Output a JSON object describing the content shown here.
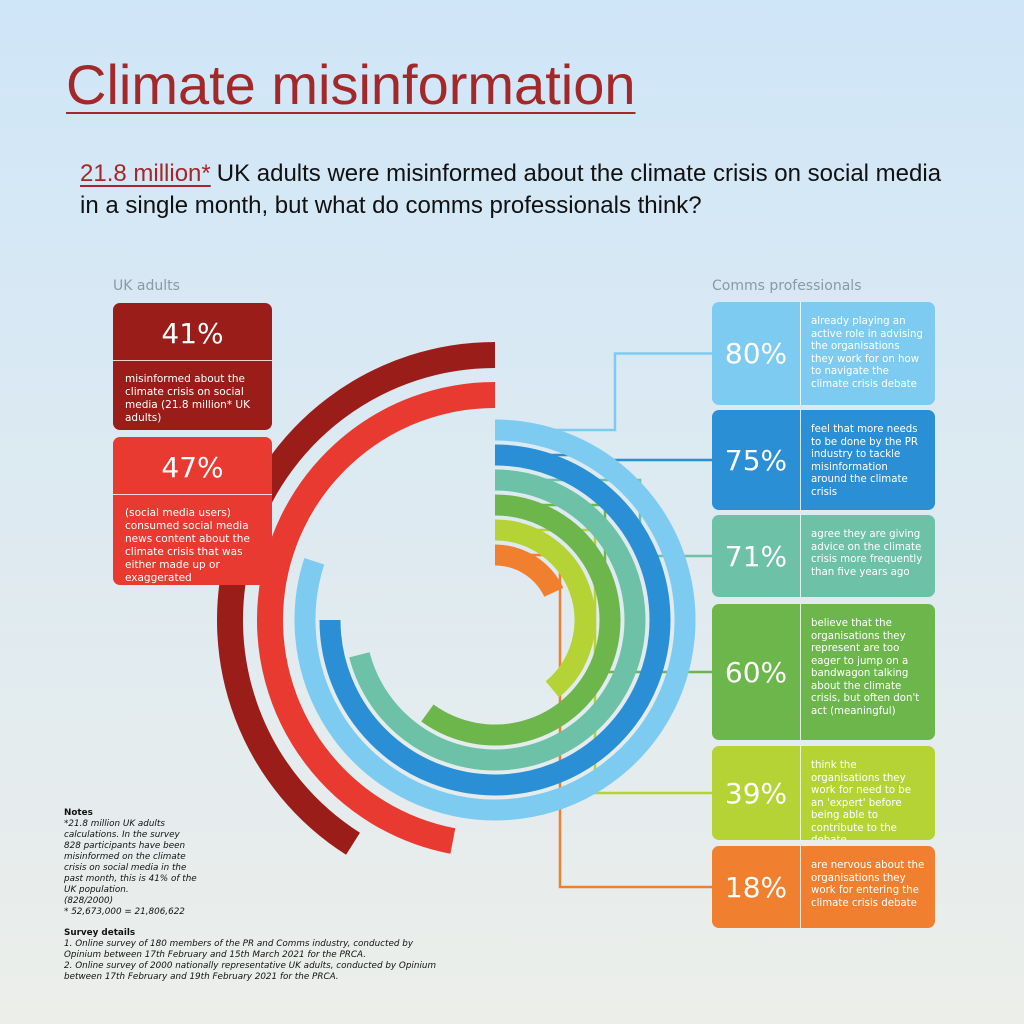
{
  "chart_data": {
    "type": "radial_bar",
    "title": "Climate misinformation",
    "subtitle_lead": "21.8 million*",
    "subtitle": "UK adults were misinformed about the climate crisis on social media in a single month, but what do comms professionals think?",
    "ylim": [
      0,
      100
    ],
    "series": [
      {
        "name": "UK adults",
        "direction": "counterclockwise",
        "values": [
          41,
          47
        ],
        "value_labels": [
          "41%",
          "47%"
        ],
        "colors": [
          "#9b1d1a",
          "#e83a30"
        ],
        "descriptions": [
          "misinformed about the climate crisis on social media (21.8 million* UK adults)",
          "(social media users) consumed social media news content about the climate crisis that was either made up or exaggerated"
        ]
      },
      {
        "name": "Comms professionals",
        "direction": "clockwise",
        "values": [
          80,
          75,
          71,
          60,
          39,
          18
        ],
        "value_labels": [
          "80%",
          "75%",
          "71%",
          "60%",
          "39%",
          "18%"
        ],
        "colors": [
          "#7ecbf1",
          "#2b8fd5",
          "#6cc1a6",
          "#6db64b",
          "#b6d335",
          "#f0802f"
        ],
        "descriptions": [
          "already playing an active role in advising the organisations they work for on how to navigate the climate crisis debate",
          "feel that more needs to be done by the PR industry to tackle misinformation around the climate crisis",
          "agree they are giving advice on the climate crisis more frequently than five years ago",
          "believe that the organisations they represent are too eager to jump on a bandwagon talking about the climate crisis, but often don't act (meaningful)",
          "think the organisations they work for need to be an 'expert' before being able to contribute to the debate",
          "are nervous about the organisations they work for entering the climate crisis debate"
        ]
      }
    ],
    "notes_title": "Notes",
    "notes": [
      "*21.8 million UK adults calculations. In the survey 828 participants have been misinformed on the climate crisis on social media in the past month, this is 41% of the UK population.",
      "(828/2000)",
      "* 52,673,000 =  21,806,622"
    ],
    "survey_title": "Survey details",
    "survey": [
      "1. Online survey of 180 members of the PR and Comms industry, conducted by Opinium between 17th February and 15th March 2021 for the PRCA.",
      "2. Online survey of 2000 nationally representative UK adults, conducted by Opinium between 17th February and 19th February 2021 for the PRCA."
    ]
  }
}
